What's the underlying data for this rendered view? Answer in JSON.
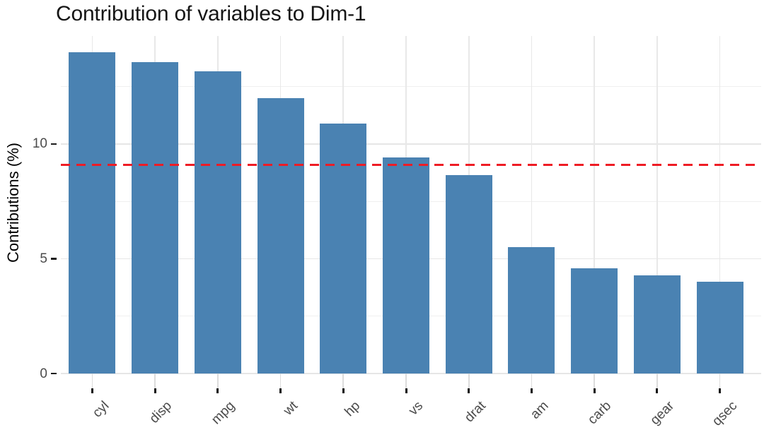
{
  "chart_data": {
    "type": "bar",
    "title": "Contribution of variables to Dim-1",
    "xlabel": "",
    "ylabel": "Contributions (%)",
    "categories": [
      "cyl",
      "disp",
      "mpg",
      "wt",
      "hp",
      "vs",
      "drat",
      "am",
      "carb",
      "gear",
      "qsec"
    ],
    "values": [
      13.98,
      13.56,
      13.15,
      11.98,
      10.9,
      9.4,
      8.65,
      5.52,
      4.58,
      4.29,
      4.01
    ],
    "ylim": [
      0,
      14.7
    ],
    "yticks": [
      0,
      5,
      10
    ],
    "yticks_minor": [
      2.5,
      7.5,
      12.5
    ],
    "reference_line": {
      "value": 9.09,
      "style": "dashed",
      "color": "#ee1c25"
    },
    "bar_color": "#4a82b2",
    "grid": true,
    "legend": "none",
    "x_tick_label_angle": 45
  },
  "colors": {
    "background": "#ffffff",
    "bar": "#4a82b2",
    "reference_line": "#ee1c25",
    "grid_major": "#e6e6e6",
    "grid_minor": "#efefef",
    "tick_label": "#4b4b4b",
    "tick_mark": "#141414",
    "title_text": "#151515"
  }
}
